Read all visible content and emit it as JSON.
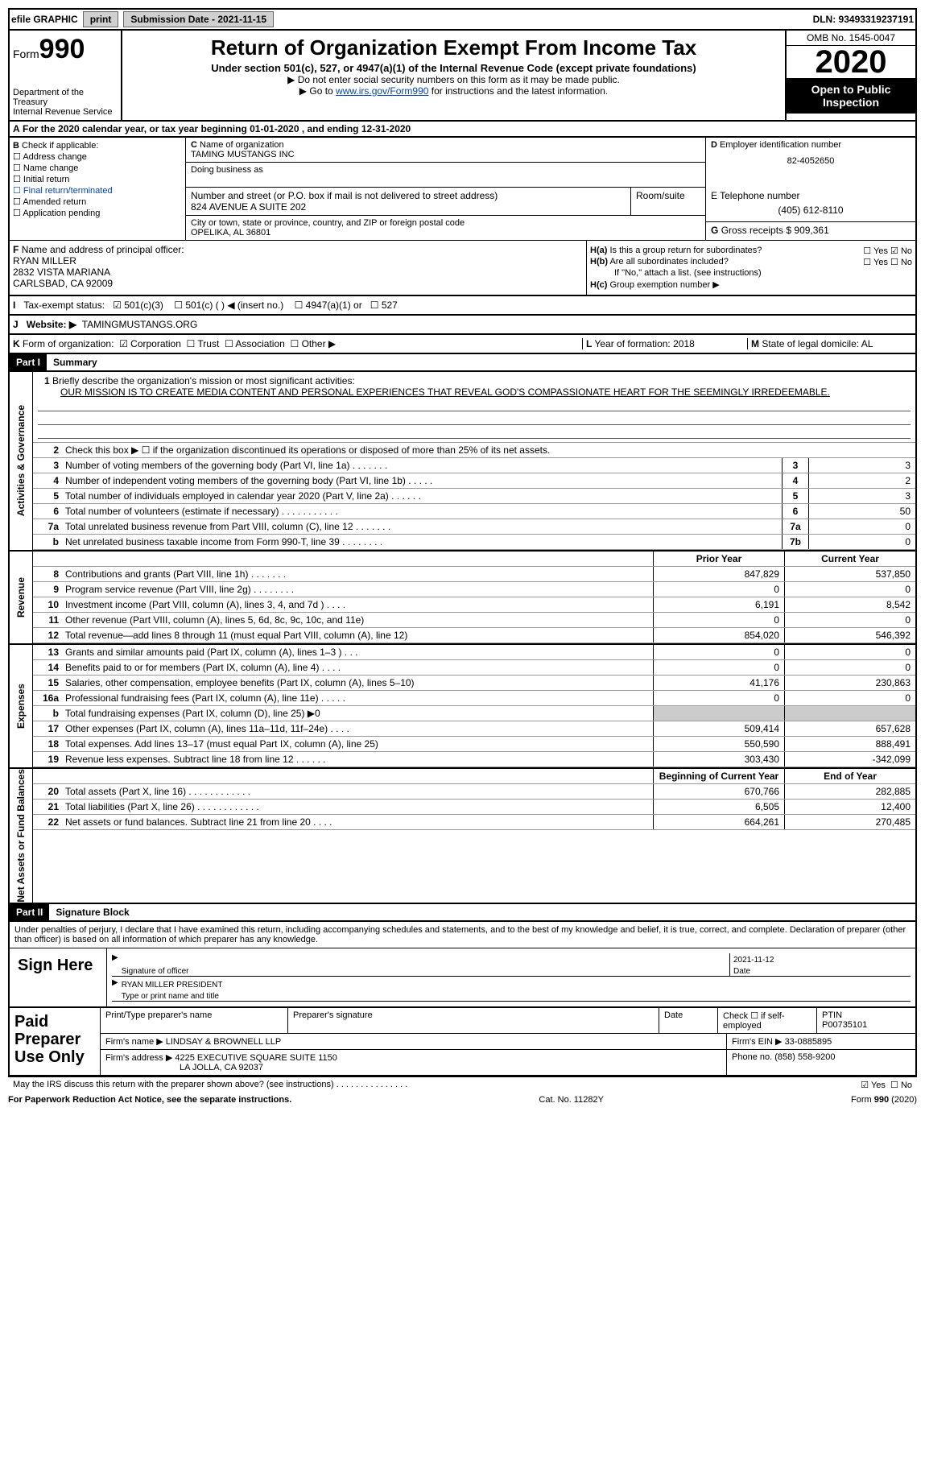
{
  "top": {
    "efile": "efile GRAPHIC",
    "print": "print",
    "submission": "Submission Date - 2021-11-15",
    "dln": "DLN: 93493319237191"
  },
  "header": {
    "form_label": "Form",
    "form_number": "990",
    "dept1": "Department of the Treasury",
    "dept2": "Internal Revenue Service",
    "title": "Return of Organization Exempt From Income Tax",
    "subtitle": "Under section 501(c), 527, or 4947(a)(1) of the Internal Revenue Code (except private foundations)",
    "note1": "Do not enter social security numbers on this form as it may be made public.",
    "note2_pre": "Go to ",
    "note2_link": "www.irs.gov/Form990",
    "note2_post": " for instructions and the latest information.",
    "omb": "OMB No. 1545-0047",
    "year": "2020",
    "open": "Open to Public Inspection"
  },
  "A": {
    "text": "For the 2020 calendar year, or tax year beginning 01-01-2020    , and ending 12-31-2020"
  },
  "B": {
    "label": "Check if applicable:",
    "items": [
      "Address change",
      "Name change",
      "Initial return",
      "Final return/terminated",
      "Amended return",
      "Application pending"
    ]
  },
  "C": {
    "name_lbl": "Name of organization",
    "name": "TAMING MUSTANGS INC",
    "dba_lbl": "Doing business as",
    "street_lbl": "Number and street (or P.O. box if mail is not delivered to street address)",
    "room_lbl": "Room/suite",
    "street": "824 AVENUE A SUITE 202",
    "city_lbl": "City or town, state or province, country, and ZIP or foreign postal code",
    "city": "OPELIKA, AL  36801"
  },
  "D": {
    "lbl": "Employer identification number",
    "val": "82-4052650"
  },
  "E": {
    "lbl": "Telephone number",
    "val": "(405) 612-8110"
  },
  "G": {
    "lbl": "Gross receipts $",
    "val": "909,361"
  },
  "F": {
    "lbl": "Name and address of principal officer:",
    "name": "RYAN MILLER",
    "addr1": "2832 VISTA MARIANA",
    "addr2": "CARLSBAD, CA  92009"
  },
  "H": {
    "a": "Is this a group return for subordinates?",
    "b": "Are all subordinates included?",
    "b_note": "If \"No,\" attach a list. (see instructions)",
    "c": "Group exemption number ▶",
    "yes": "Yes",
    "no": "No"
  },
  "I": {
    "lbl": "Tax-exempt status:",
    "opts": [
      "501(c)(3)",
      "501(c) (   ) ◀ (insert no.)",
      "4947(a)(1) or",
      "527"
    ]
  },
  "J": {
    "lbl": "Website: ▶",
    "val": "TAMINGMUSTANGS.ORG"
  },
  "K": {
    "lbl": "Form of organization:",
    "opts": [
      "Corporation",
      "Trust",
      "Association",
      "Other ▶"
    ]
  },
  "L": {
    "lbl": "Year of formation:",
    "val": "2018"
  },
  "M": {
    "lbl": "State of legal domicile:",
    "val": "AL"
  },
  "part1": {
    "hdr": "Part I",
    "title": "Summary",
    "sections": {
      "gov": "Activities & Governance",
      "rev": "Revenue",
      "exp": "Expenses",
      "net": "Net Assets or Fund Balances"
    },
    "q1": "Briefly describe the organization's mission or most significant activities:",
    "mission": "OUR MISSION IS TO CREATE MEDIA CONTENT AND PERSONAL EXPERIENCES THAT REVEAL GOD'S COMPASSIONATE HEART FOR THE SEEMINGLY IRREDEEMABLE.",
    "q2": "Check this box ▶ ☐  if the organization discontinued its operations or disposed of more than 25% of its net assets.",
    "gov_rows": [
      {
        "n": "3",
        "t": "Number of voting members of the governing body (Part VI, line 1a)  .    .    .    .    .    .    .",
        "b": "3",
        "v": "3"
      },
      {
        "n": "4",
        "t": "Number of independent voting members of the governing body (Part VI, line 1b)  .    .    .    .    .",
        "b": "4",
        "v": "2"
      },
      {
        "n": "5",
        "t": "Total number of individuals employed in calendar year 2020 (Part V, line 2a)  .    .    .    .    .    .",
        "b": "5",
        "v": "3"
      },
      {
        "n": "6",
        "t": "Total number of volunteers (estimate if necessary)  .    .    .    .    .    .    .    .    .    .    .",
        "b": "6",
        "v": "50"
      },
      {
        "n": "7a",
        "t": "Total unrelated business revenue from Part VIII, column (C), line 12  .    .    .    .    .    .    .",
        "b": "7a",
        "v": "0"
      },
      {
        "n": "b",
        "t": "Net unrelated business taxable income from Form 990-T, line 39  .    .    .    .    .    .    .    .",
        "b": "7b",
        "v": "0"
      }
    ],
    "col_prior": "Prior Year",
    "col_current": "Current Year",
    "rev_rows": [
      {
        "n": "8",
        "t": "Contributions and grants (Part VIII, line 1h)   .    .    .    .    .    .    .",
        "c1": "847,829",
        "c2": "537,850"
      },
      {
        "n": "9",
        "t": "Program service revenue (Part VIII, line 2g)   .    .    .    .    .    .    .    .",
        "c1": "0",
        "c2": "0"
      },
      {
        "n": "10",
        "t": "Investment income (Part VIII, column (A), lines 3, 4, and 7d )   .    .    .    .",
        "c1": "6,191",
        "c2": "8,542"
      },
      {
        "n": "11",
        "t": "Other revenue (Part VIII, column (A), lines 5, 6d, 8c, 9c, 10c, and 11e)",
        "c1": "0",
        "c2": "0"
      },
      {
        "n": "12",
        "t": "Total revenue—add lines 8 through 11 (must equal Part VIII, column (A), line 12)",
        "c1": "854,020",
        "c2": "546,392"
      }
    ],
    "exp_rows": [
      {
        "n": "13",
        "t": "Grants and similar amounts paid (Part IX, column (A), lines 1–3 )   .    .    .",
        "c1": "0",
        "c2": "0"
      },
      {
        "n": "14",
        "t": "Benefits paid to or for members (Part IX, column (A), line 4)   .    .    .    .",
        "c1": "0",
        "c2": "0"
      },
      {
        "n": "15",
        "t": "Salaries, other compensation, employee benefits (Part IX, column (A), lines 5–10)",
        "c1": "41,176",
        "c2": "230,863"
      },
      {
        "n": "16a",
        "t": "Professional fundraising fees (Part IX, column (A), line 11e)   .    .    .    .    .",
        "c1": "0",
        "c2": "0"
      },
      {
        "n": "b",
        "t": "Total fundraising expenses (Part IX, column (D), line 25) ▶0",
        "c1": "",
        "c2": "",
        "shade": true
      },
      {
        "n": "17",
        "t": "Other expenses (Part IX, column (A), lines 11a–11d, 11f–24e)   .    .    .    .",
        "c1": "509,414",
        "c2": "657,628"
      },
      {
        "n": "18",
        "t": "Total expenses. Add lines 13–17 (must equal Part IX, column (A), line 25)",
        "c1": "550,590",
        "c2": "888,491"
      },
      {
        "n": "19",
        "t": "Revenue less expenses. Subtract line 18 from line 12   .    .    .    .    .    .",
        "c1": "303,430",
        "c2": "-342,099"
      }
    ],
    "col_begin": "Beginning of Current Year",
    "col_end": "End of Year",
    "net_rows": [
      {
        "n": "20",
        "t": "Total assets (Part X, line 16)   .    .    .    .    .    .    .    .    .    .    .    .",
        "c1": "670,766",
        "c2": "282,885"
      },
      {
        "n": "21",
        "t": "Total liabilities (Part X, line 26)   .    .    .    .    .    .    .    .    .    .    .    .",
        "c1": "6,505",
        "c2": "12,400"
      },
      {
        "n": "22",
        "t": "Net assets or fund balances. Subtract line 21 from line 20   .    .    .    .",
        "c1": "664,261",
        "c2": "270,485"
      }
    ]
  },
  "part2": {
    "hdr": "Part II",
    "title": "Signature Block",
    "declare": "Under penalties of perjury, I declare that I have examined this return, including accompanying schedules and statements, and to the best of my knowledge and belief, it is true, correct, and complete. Declaration of preparer (other than officer) is based on all information of which preparer has any knowledge.",
    "sign": "Sign Here",
    "sig_officer": "Signature of officer",
    "sig_date": "Date",
    "officer_date": "2021-11-12",
    "officer_name": "RYAN MILLER  PRESIDENT",
    "type_name": "Type or print name and title",
    "paid": "Paid Preparer Use Only",
    "prep_name_lbl": "Print/Type preparer's name",
    "prep_sig_lbl": "Preparer's signature",
    "date_lbl": "Date",
    "check_self": "Check ☐ if self-employed",
    "ptin_lbl": "PTIN",
    "ptin": "P00735101",
    "firm_name_lbl": "Firm's name   ▶",
    "firm_name": "LINDSAY & BROWNELL LLP",
    "firm_ein_lbl": "Firm's EIN ▶",
    "firm_ein": "33-0885895",
    "firm_addr_lbl": "Firm's address ▶",
    "firm_addr1": "4225 EXECUTIVE SQUARE SUITE 1150",
    "firm_addr2": "LA JOLLA, CA  92037",
    "phone_lbl": "Phone no.",
    "phone": "(858) 558-9200",
    "discuss": "May the IRS discuss this return with the preparer shown above? (see instructions)   .    .    .    .    .    .    .    .    .    .    .    .    .    .    .",
    "discuss_yes": "Yes",
    "discuss_no": "No"
  },
  "footer": {
    "left": "For Paperwork Reduction Act Notice, see the separate instructions.",
    "mid": "Cat. No. 11282Y",
    "right": "Form 990 (2020)"
  }
}
